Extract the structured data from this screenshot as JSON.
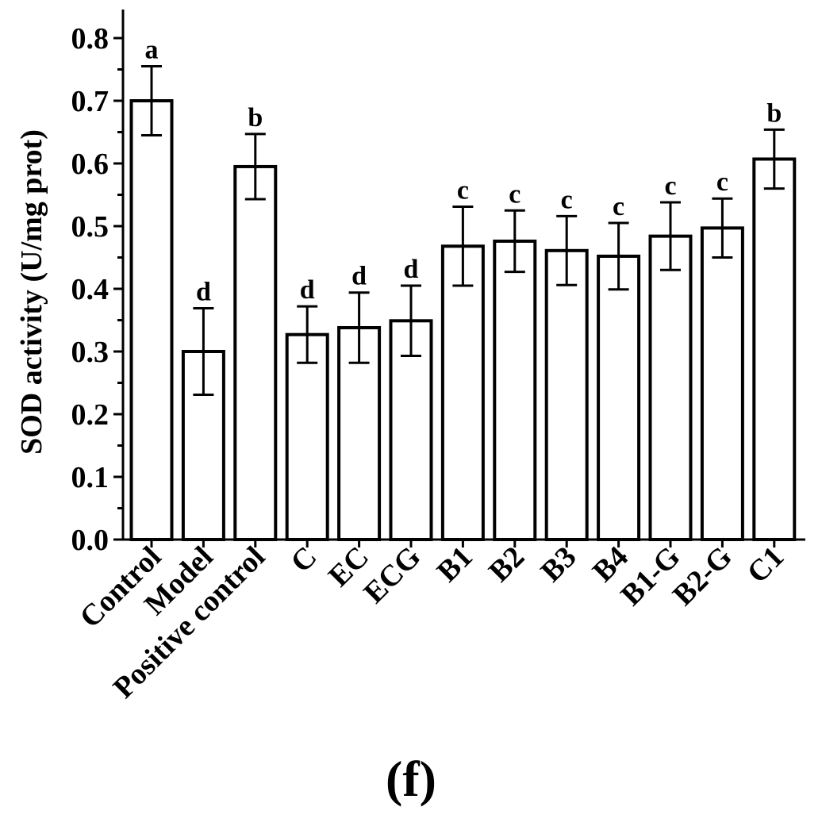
{
  "chart_data": {
    "type": "bar",
    "ylabel": "SOD activity (U/mg prot)",
    "xlabel": "",
    "ylim": [
      0,
      0.85
    ],
    "yticks": [
      "0.0",
      "0.1",
      "0.2",
      "0.3",
      "0.4",
      "0.5",
      "0.6",
      "0.7",
      "0.8"
    ],
    "categories": [
      "Control",
      "Model",
      "Positive control",
      "C",
      "EC",
      "ECG",
      "B1",
      "B2",
      "B3",
      "B4",
      "B1-G",
      "B2-G",
      "C1"
    ],
    "values": [
      0.7,
      0.3,
      0.595,
      0.327,
      0.338,
      0.349,
      0.468,
      0.476,
      0.461,
      0.452,
      0.484,
      0.497,
      0.607
    ],
    "errors": [
      0.055,
      0.069,
      0.052,
      0.045,
      0.056,
      0.056,
      0.063,
      0.049,
      0.055,
      0.053,
      0.054,
      0.047,
      0.047
    ],
    "significance_letters": [
      "a",
      "d",
      "b",
      "d",
      "d",
      "d",
      "c",
      "c",
      "c",
      "c",
      "c",
      "c",
      "b"
    ],
    "bar_fill": "#ffffff",
    "bar_stroke": "#000000",
    "grid": false,
    "legend": "none"
  },
  "panel_label": "(f)"
}
